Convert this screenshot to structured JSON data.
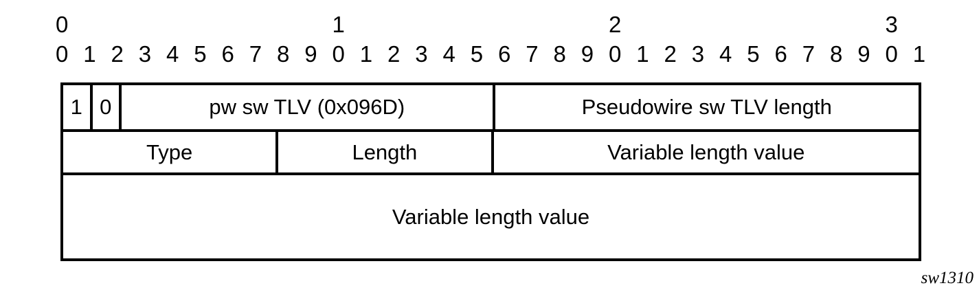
{
  "ruler": {
    "decades": [
      {
        "label": "0",
        "bit": 0
      },
      {
        "label": "1",
        "bit": 10
      },
      {
        "label": "2",
        "bit": 20
      },
      {
        "label": "3",
        "bit": 30
      }
    ],
    "bits": [
      "0",
      "1",
      "2",
      "3",
      "4",
      "5",
      "6",
      "7",
      "8",
      "9",
      "0",
      "1",
      "2",
      "3",
      "4",
      "5",
      "6",
      "7",
      "8",
      "9",
      "0",
      "1",
      "2",
      "3",
      "4",
      "5",
      "6",
      "7",
      "8",
      "9",
      "0",
      "1"
    ]
  },
  "packet": {
    "rows": [
      {
        "cells": [
          {
            "label": "1",
            "bits": 1
          },
          {
            "label": "0",
            "bits": 1
          },
          {
            "label": "pw sw TLV (0x096D)",
            "bits": 14
          },
          {
            "label": "Pseudowire sw TLV length",
            "bits": 16
          }
        ]
      },
      {
        "cells": [
          {
            "label": "Type",
            "bits": 8
          },
          {
            "label": "Length",
            "bits": 8
          },
          {
            "label": "Variable length value",
            "bits": 16
          }
        ]
      },
      {
        "cells": [
          {
            "label": "Variable length value",
            "bits": 32
          }
        ]
      }
    ]
  },
  "caption": "sw1310",
  "colors": {
    "background": "#ffffff",
    "line": "#000000",
    "text": "#000000"
  }
}
